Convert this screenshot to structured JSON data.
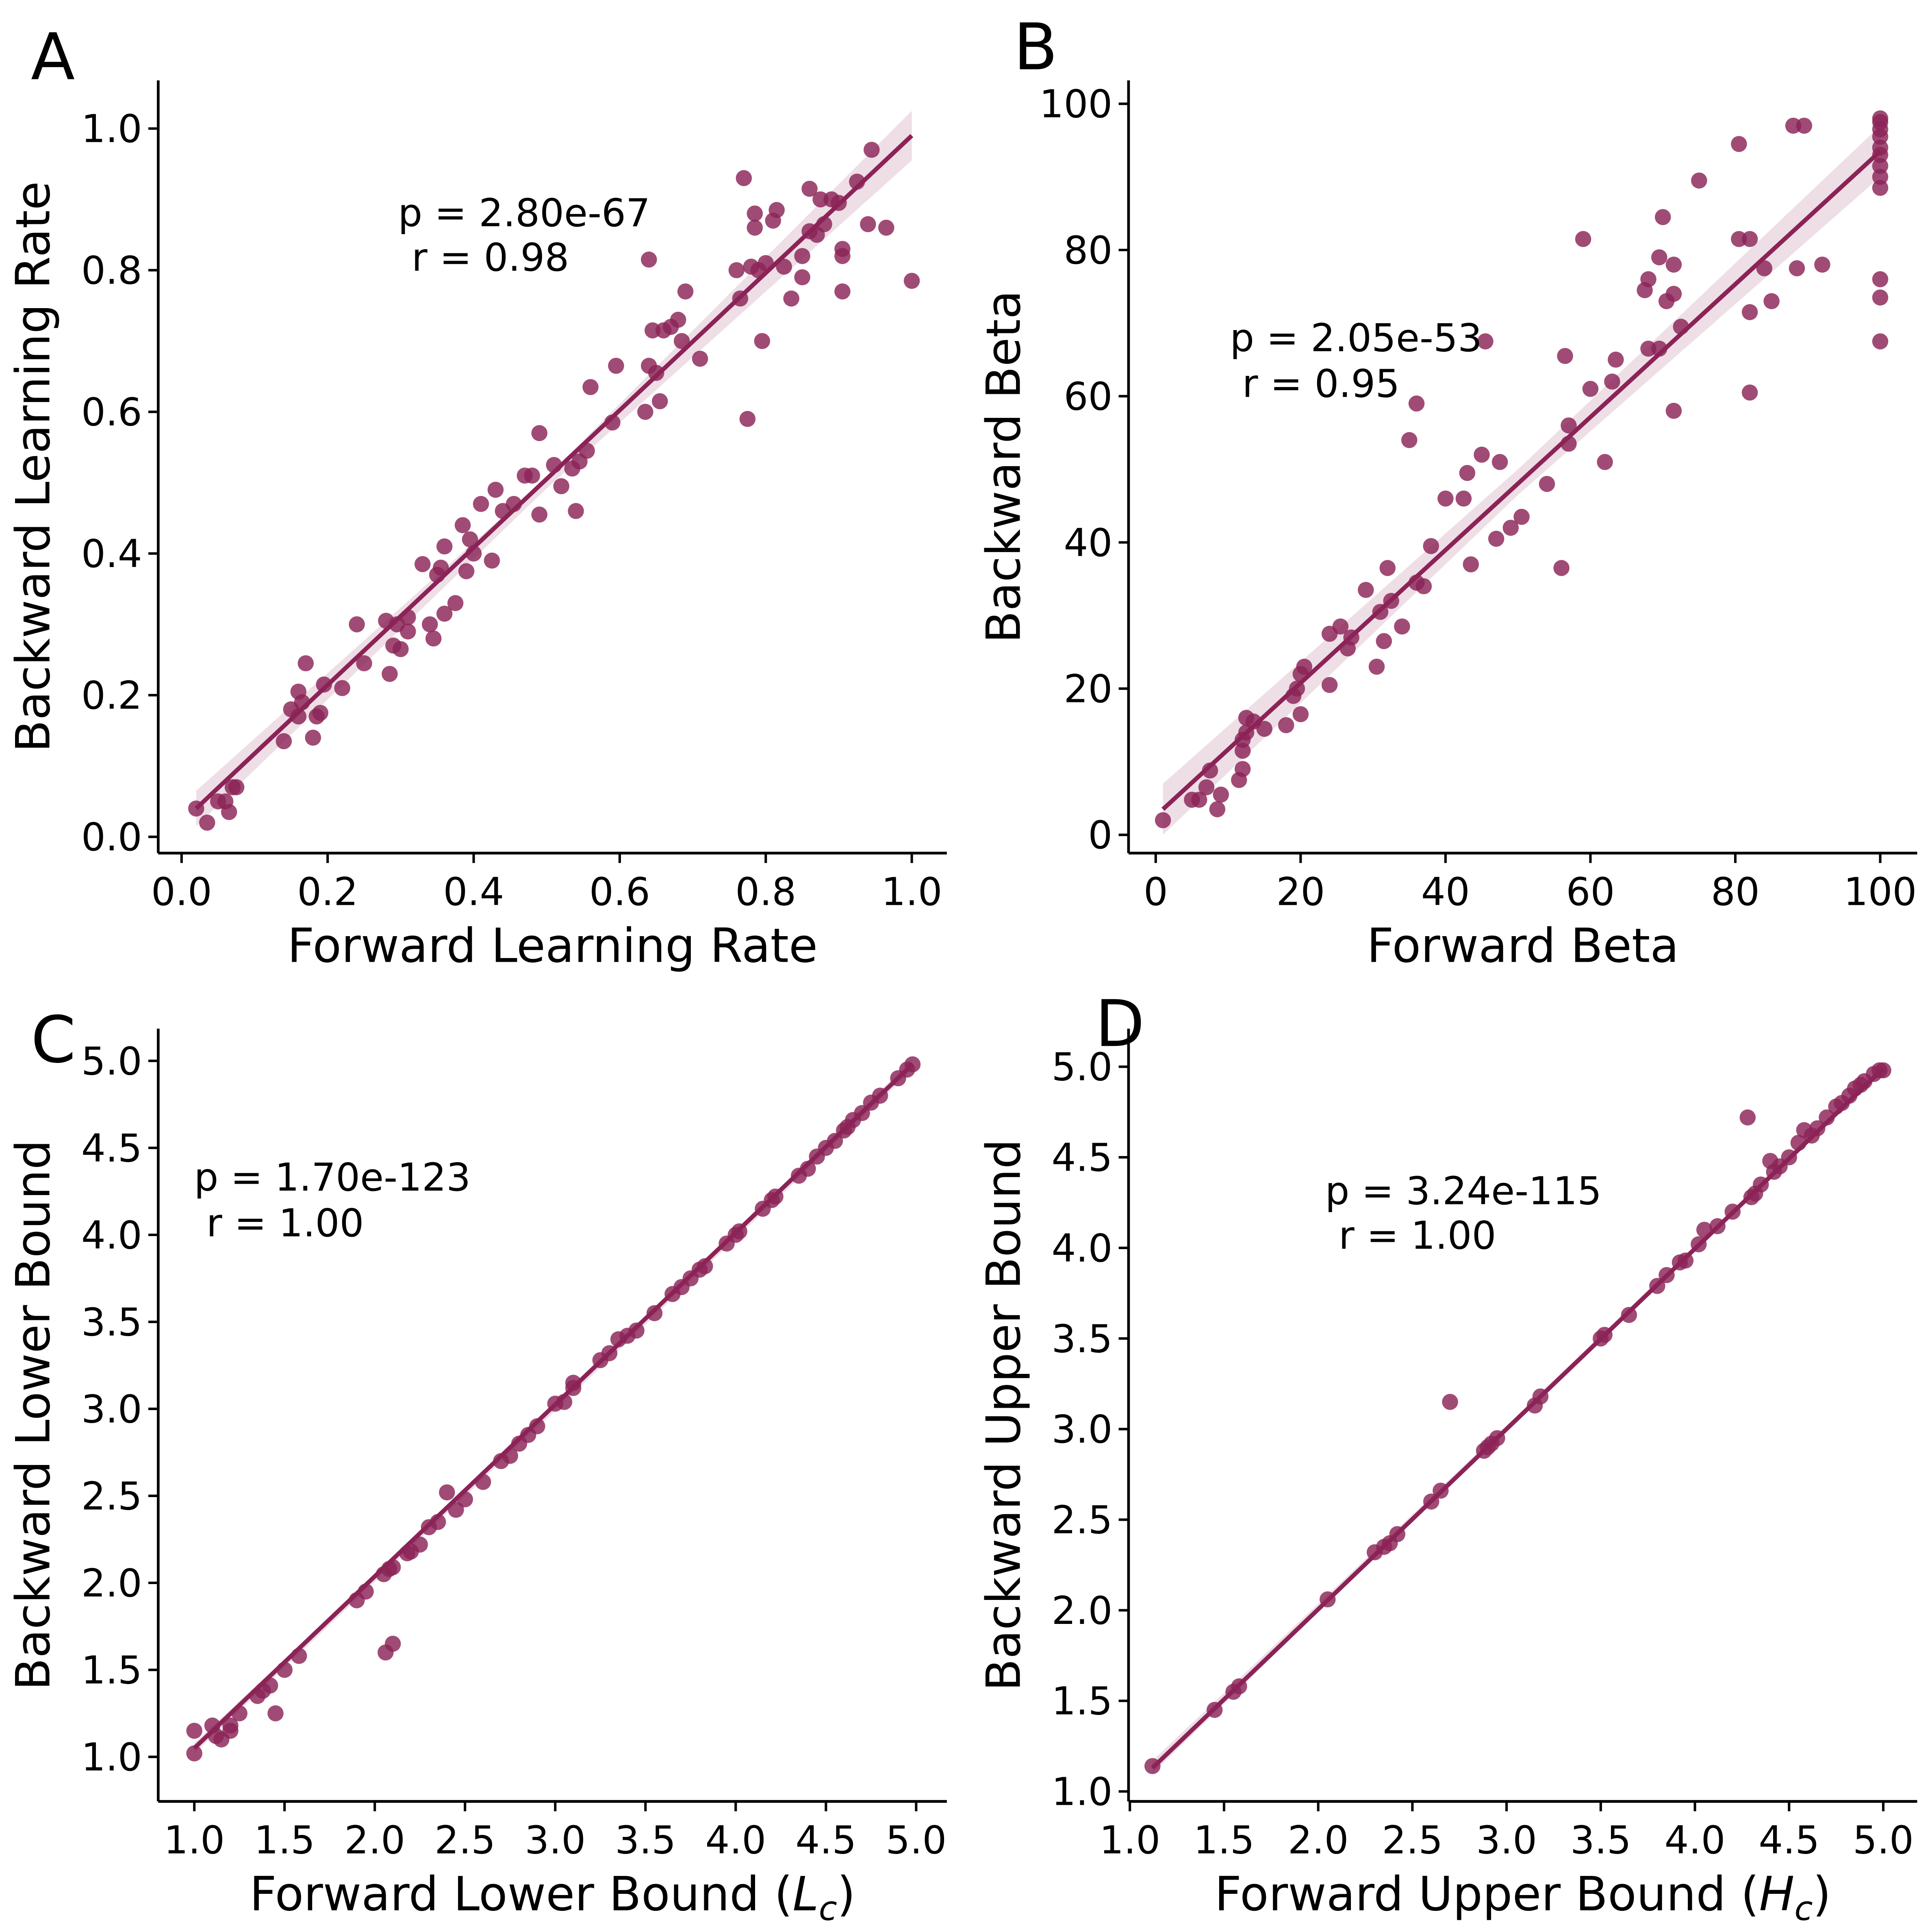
{
  "chart_data": [
    {
      "type": "scatter",
      "panel": "A",
      "xlabel": "Forward Learning Rate",
      "ylabel": "Backward Learning Rate",
      "annotations": [
        "p = 2.80e-67",
        "r = 0.98"
      ],
      "color": "#8b2357",
      "xlim": [
        -0.032,
        1.048
      ],
      "ylim": [
        -0.023,
        1.068
      ],
      "xticks": [
        {
          "value": 0,
          "label": "0.0"
        },
        0.2,
        0.4,
        0.6,
        0.8,
        {
          "value": 1,
          "label": "1.0"
        }
      ],
      "yticks": [
        {
          "value": 0,
          "label": "0.0"
        },
        0.2,
        0.4,
        0.6,
        0.8,
        {
          "value": 1,
          "label": "1.0"
        }
      ],
      "x": [
        0.02,
        0.035,
        0.05,
        0.06,
        0.065,
        0.07,
        0.075,
        0.14,
        0.15,
        0.16,
        0.16,
        0.165,
        0.17,
        0.18,
        0.185,
        0.19,
        0.195,
        0.22,
        0.24,
        0.25,
        0.28,
        0.285,
        0.29,
        0.295,
        0.3,
        0.31,
        0.31,
        0.33,
        0.34,
        0.345,
        0.35,
        0.355,
        0.36,
        0.36,
        0.375,
        0.385,
        0.39,
        0.395,
        0.4,
        0.41,
        0.425,
        0.43,
        0.44,
        0.455,
        0.47,
        0.48,
        0.49,
        0.49,
        0.51,
        0.52,
        0.535,
        0.54,
        0.545,
        0.555,
        0.56,
        0.59,
        0.595,
        0.635,
        0.64,
        0.64,
        0.645,
        0.65,
        0.655,
        0.66,
        0.67,
        0.68,
        0.685,
        0.69,
        0.71,
        0.76,
        0.765,
        0.77,
        0.775,
        0.78,
        0.785,
        0.785,
        0.79,
        0.795,
        0.8,
        0.81,
        0.815,
        0.825,
        0.835,
        0.85,
        0.85,
        0.86,
        0.86,
        0.87,
        0.875,
        0.88,
        0.89,
        0.9,
        0.905,
        0.905,
        0.905,
        0.925,
        0.94,
        0.945,
        0.965,
        1.0
      ],
      "values": [
        0.04,
        0.02,
        0.05,
        0.05,
        0.035,
        0.07,
        0.07,
        0.135,
        0.18,
        0.17,
        0.205,
        0.19,
        0.245,
        0.14,
        0.17,
        0.175,
        0.215,
        0.21,
        0.3,
        0.245,
        0.305,
        0.23,
        0.27,
        0.3,
        0.265,
        0.29,
        0.31,
        0.385,
        0.3,
        0.28,
        0.37,
        0.38,
        0.315,
        0.41,
        0.33,
        0.44,
        0.375,
        0.42,
        0.4,
        0.47,
        0.39,
        0.49,
        0.46,
        0.47,
        0.51,
        0.51,
        0.57,
        0.455,
        0.525,
        0.495,
        0.52,
        0.46,
        0.53,
        0.545,
        0.635,
        0.585,
        0.665,
        0.6,
        0.815,
        0.665,
        0.715,
        0.655,
        0.615,
        0.715,
        0.72,
        0.73,
        0.7,
        0.77,
        0.675,
        0.8,
        0.76,
        0.93,
        0.59,
        0.805,
        0.86,
        0.88,
        0.8,
        0.7,
        0.81,
        0.87,
        0.885,
        0.805,
        0.76,
        0.79,
        0.82,
        0.855,
        0.915,
        0.85,
        0.9,
        0.865,
        0.9,
        0.895,
        0.83,
        0.82,
        0.77,
        0.925,
        0.865,
        0.97,
        0.86,
        0.785
      ],
      "fit": {
        "x": [
          0.02,
          1.0
        ],
        "values": [
          0.04,
          0.99
        ]
      },
      "ci": {
        "x": [
          0.02,
          0.5,
          1.0
        ],
        "lower": [
          0.015,
          0.492,
          0.955
        ],
        "upper": [
          0.065,
          0.508,
          1.025
        ]
      }
    },
    {
      "type": "scatter",
      "panel": "B",
      "xlabel": "Forward Beta",
      "ylabel": "Backward Beta",
      "annotations": [
        "p = 2.05e-53",
        "r = 0.95"
      ],
      "color": "#8b2357",
      "xlim": [
        -3.75,
        105.1
      ],
      "ylim": [
        -2.5,
        103.2
      ],
      "xticks": [
        0,
        20,
        40,
        60,
        80,
        100
      ],
      "yticks": [
        0,
        20,
        40,
        60,
        80,
        100
      ],
      "x": [
        1,
        5,
        6,
        7,
        7.5,
        8.5,
        9,
        11.5,
        12,
        12,
        12,
        12.5,
        12.5,
        13.5,
        15,
        18,
        19,
        19.5,
        20,
        20,
        20.5,
        24,
        24,
        25.5,
        26.5,
        27,
        29,
        30.5,
        31,
        31.5,
        32,
        32.5,
        34,
        35,
        36,
        36,
        37,
        38,
        40,
        42.5,
        43,
        43.5,
        45,
        45.5,
        47,
        47.5,
        49,
        50.5,
        54,
        56,
        56.5,
        57,
        57,
        59,
        60,
        62,
        63,
        63.5,
        67.5,
        68,
        68,
        69.5,
        69.5,
        70,
        70.5,
        71.5,
        71.5,
        71.5,
        72.5,
        75,
        80.5,
        80.5,
        82,
        82,
        82,
        84,
        85,
        88,
        88.5,
        89.5,
        92,
        100,
        100,
        100,
        100,
        100,
        100,
        100,
        100,
        100,
        100,
        100,
        100
      ],
      "values": [
        2,
        4.8,
        4.8,
        6.5,
        8.8,
        3.5,
        5.5,
        7.5,
        9,
        11.5,
        13,
        14,
        16,
        15.5,
        14.5,
        15,
        19,
        20,
        16.5,
        22,
        23,
        27.5,
        20.5,
        28.5,
        25.5,
        27,
        33.5,
        23,
        30.5,
        26.5,
        36.5,
        32,
        28.5,
        54,
        34.5,
        59,
        34,
        39.5,
        46,
        46,
        49.5,
        37,
        52,
        67.5,
        40.5,
        51,
        42,
        43.5,
        48,
        36.5,
        65.5,
        53.5,
        56,
        81.5,
        61,
        51,
        62,
        65,
        74.5,
        66.5,
        76,
        66.5,
        79,
        84.5,
        73,
        78,
        58,
        74,
        69.5,
        89.5,
        81.5,
        94.5,
        60.5,
        71.5,
        81.5,
        77.5,
        73,
        97,
        77.5,
        97,
        78,
        67.5,
        73.5,
        76,
        88.5,
        90,
        91.5,
        93,
        94,
        95.5,
        96.5,
        97.5,
        98
      ],
      "fit": {
        "x": [
          1,
          100
        ],
        "values": [
          3.5,
          93.5
        ]
      },
      "ci": {
        "x": [
          1,
          50,
          100
        ],
        "lower": [
          0,
          46.5,
          90
        ],
        "upper": [
          7,
          50,
          97
        ]
      }
    },
    {
      "type": "scatter",
      "panel": "C",
      "xlabel": [
        "Forward Lower Bound (",
        "L",
        "c",
        ")"
      ],
      "ylabel": "Backward Lower Bound",
      "annotations": [
        "p = 1.70e-123",
        "r = 1.00"
      ],
      "color": "#8b2357",
      "xlim": [
        0.8,
        5.17
      ],
      "ylim": [
        0.744,
        5.185
      ],
      "xticks": [
        {
          "value": 1,
          "label": "1.0"
        },
        1.5,
        {
          "value": 2,
          "label": "2.0"
        },
        2.5,
        {
          "value": 3,
          "label": "3.0"
        },
        3.5,
        {
          "value": 4,
          "label": "4.0"
        },
        4.5,
        {
          "value": 5,
          "label": "5.0"
        }
      ],
      "yticks": [
        {
          "value": 1,
          "label": "1.0"
        },
        1.5,
        {
          "value": 2,
          "label": "2.0"
        },
        2.5,
        {
          "value": 3,
          "label": "3.0"
        },
        3.5,
        {
          "value": 4,
          "label": "4.0"
        },
        4.5,
        {
          "value": 5,
          "label": "5.0"
        }
      ],
      "x": [
        1.0,
        1.0,
        1.1,
        1.12,
        1.15,
        1.2,
        1.2,
        1.25,
        1.35,
        1.38,
        1.42,
        1.45,
        1.5,
        1.58,
        1.9,
        1.95,
        2.05,
        2.06,
        2.08,
        2.1,
        2.1,
        2.18,
        2.2,
        2.25,
        2.3,
        2.35,
        2.4,
        2.45,
        2.5,
        2.6,
        2.7,
        2.75,
        2.8,
        2.85,
        2.9,
        3.0,
        3.05,
        3.1,
        3.1,
        3.25,
        3.3,
        3.35,
        3.4,
        3.45,
        3.55,
        3.65,
        3.7,
        3.75,
        3.8,
        3.83,
        3.95,
        4.0,
        4.02,
        4.15,
        4.2,
        4.22,
        4.35,
        4.4,
        4.45,
        4.5,
        4.55,
        4.6,
        4.62,
        4.65,
        4.7,
        4.75,
        4.8,
        4.9,
        4.95,
        4.98
      ],
      "values": [
        1.15,
        1.02,
        1.18,
        1.12,
        1.1,
        1.15,
        1.18,
        1.25,
        1.35,
        1.38,
        1.41,
        1.25,
        1.5,
        1.58,
        1.9,
        1.95,
        2.05,
        1.6,
        2.08,
        1.65,
        2.09,
        2.17,
        2.18,
        2.22,
        2.32,
        2.35,
        2.52,
        2.42,
        2.48,
        2.58,
        2.7,
        2.73,
        2.8,
        2.85,
        2.9,
        3.03,
        3.04,
        3.12,
        3.15,
        3.28,
        3.32,
        3.4,
        3.42,
        3.45,
        3.55,
        3.66,
        3.7,
        3.75,
        3.8,
        3.82,
        3.95,
        4.0,
        4.02,
        4.15,
        4.2,
        4.22,
        4.34,
        4.38,
        4.45,
        4.5,
        4.54,
        4.6,
        4.62,
        4.66,
        4.7,
        4.76,
        4.8,
        4.9,
        4.95,
        4.98
      ],
      "fit": {
        "x": [
          1.0,
          4.98
        ],
        "values": [
          1.05,
          4.98
        ]
      },
      "ci": {
        "x": [
          1.0,
          3.0,
          4.98
        ],
        "lower": [
          1.02,
          2.99,
          4.95
        ],
        "upper": [
          1.08,
          3.01,
          5.01
        ]
      }
    },
    {
      "type": "scatter",
      "panel": "D",
      "xlabel": [
        "Forward Upper Bound (",
        "H",
        "c",
        ")"
      ],
      "ylabel": "Backward Upper Bound",
      "annotations": [
        "p = 3.24e-115",
        "r = 1.00"
      ],
      "color": "#8b2357",
      "xlim": [
        0.993,
        5.18
      ],
      "ylim": [
        0.945,
        5.21
      ],
      "xticks": [
        {
          "value": 1,
          "label": "1.0"
        },
        1.5,
        {
          "value": 2,
          "label": "2.0"
        },
        2.5,
        {
          "value": 3,
          "label": "3.0"
        },
        3.5,
        {
          "value": 4,
          "label": "4.0"
        },
        4.5,
        {
          "value": 5,
          "label": "5.0"
        }
      ],
      "yticks": [
        {
          "value": 1,
          "label": "1.0"
        },
        1.5,
        {
          "value": 2,
          "label": "2.0"
        },
        2.5,
        {
          "value": 3,
          "label": "3.0"
        },
        3.5,
        {
          "value": 4,
          "label": "4.0"
        },
        4.5,
        {
          "value": 5,
          "label": "5.0"
        }
      ],
      "x": [
        1.12,
        1.45,
        1.55,
        1.58,
        2.05,
        2.3,
        2.35,
        2.38,
        2.42,
        2.6,
        2.65,
        2.7,
        2.88,
        2.9,
        2.92,
        2.95,
        3.15,
        3.18,
        3.5,
        3.52,
        3.65,
        3.8,
        3.85,
        3.92,
        3.95,
        4.02,
        4.05,
        4.12,
        4.2,
        4.28,
        4.3,
        4.32,
        4.35,
        4.4,
        4.42,
        4.45,
        4.5,
        4.55,
        4.58,
        4.62,
        4.65,
        4.7,
        4.75,
        4.78,
        4.82,
        4.85,
        4.88,
        4.9,
        4.95,
        4.98,
        5.0
      ],
      "values": [
        1.14,
        1.45,
        1.55,
        1.58,
        2.06,
        2.32,
        2.35,
        2.37,
        2.42,
        2.6,
        2.66,
        3.15,
        2.88,
        2.9,
        2.92,
        2.95,
        3.13,
        3.18,
        3.5,
        3.52,
        3.63,
        3.79,
        3.85,
        3.92,
        3.93,
        4.02,
        4.1,
        4.12,
        4.2,
        4.72,
        4.28,
        4.3,
        4.35,
        4.48,
        4.42,
        4.45,
        4.5,
        4.58,
        4.65,
        4.62,
        4.66,
        4.72,
        4.78,
        4.8,
        4.84,
        4.88,
        4.9,
        4.92,
        4.96,
        4.98,
        4.98
      ],
      "fit": {
        "x": [
          1.12,
          5.0
        ],
        "values": [
          1.13,
          4.99
        ]
      },
      "ci": {
        "x": [
          1.12,
          3.06,
          5.0
        ],
        "lower": [
          1.1,
          3.06,
          4.97
        ],
        "upper": [
          1.17,
          3.08,
          5.01
        ]
      }
    }
  ]
}
